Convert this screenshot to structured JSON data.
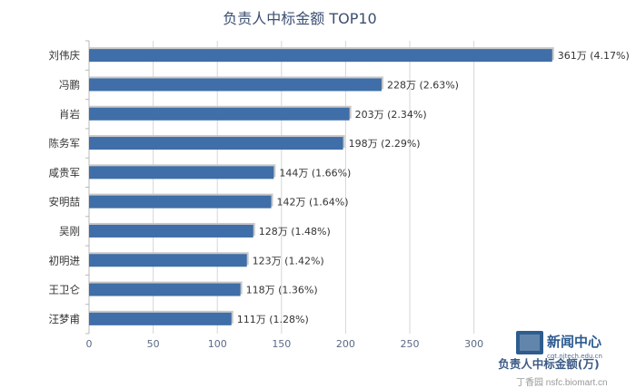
{
  "chart_data": {
    "type": "bar",
    "orientation": "horizontal",
    "title": "负责人中标金额 TOP10",
    "xlabel": "负责人中标金额(万)",
    "ylabel": "",
    "xlim": [
      0,
      350
    ],
    "xticks": [
      0,
      50,
      100,
      150,
      200,
      250,
      300
    ],
    "grid": true,
    "categories": [
      "刘伟庆",
      "冯鹏",
      "肖岩",
      "陈务军",
      "咸贵军",
      "安明喆",
      "吴刚",
      "初明进",
      "王卫仑",
      "汪梦甫"
    ],
    "values": [
      361,
      228,
      203,
      198,
      144,
      142,
      128,
      123,
      118,
      111
    ],
    "labels": [
      "361万 (4.17%)",
      "228万 (2.63%)",
      "203万 (2.34%)",
      "198万 (2.29%)",
      "144万 (1.66%)",
      "142万 (1.64%)",
      "128万 (1.48%)",
      "123万 (1.42%)",
      "118万 (1.36%)",
      "111万 (1.28%)"
    ],
    "colors": {
      "bar": "#3f6ea8",
      "title": "#3c4f72"
    }
  },
  "watermark": "丁香园 nsfc.biomart.cn",
  "logo": {
    "main": "新闻中心",
    "sub": "cqt.njtech.edu.cn"
  }
}
